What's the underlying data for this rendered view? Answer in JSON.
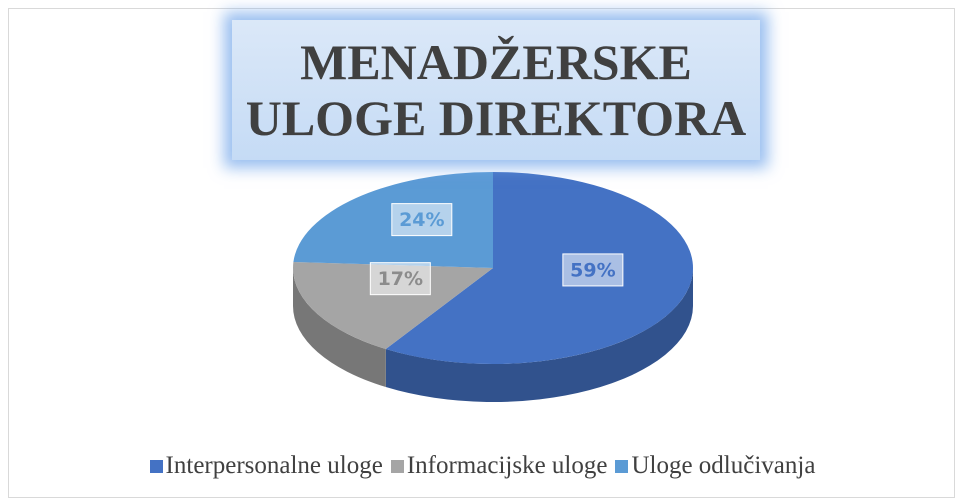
{
  "chart_data": {
    "type": "pie",
    "title": "MENADŽERSKE ULOGE DIREKTORA",
    "categories": [
      "Interpersonalne uloge",
      "Informacijske uloge",
      "Uloge odlučivanja"
    ],
    "values": [
      59,
      17,
      24
    ],
    "value_labels": [
      "59%",
      "17%",
      "24%"
    ],
    "colors": [
      "#4472c4",
      "#a5a5a5",
      "#5b9bd5"
    ],
    "legend": "bottom"
  }
}
